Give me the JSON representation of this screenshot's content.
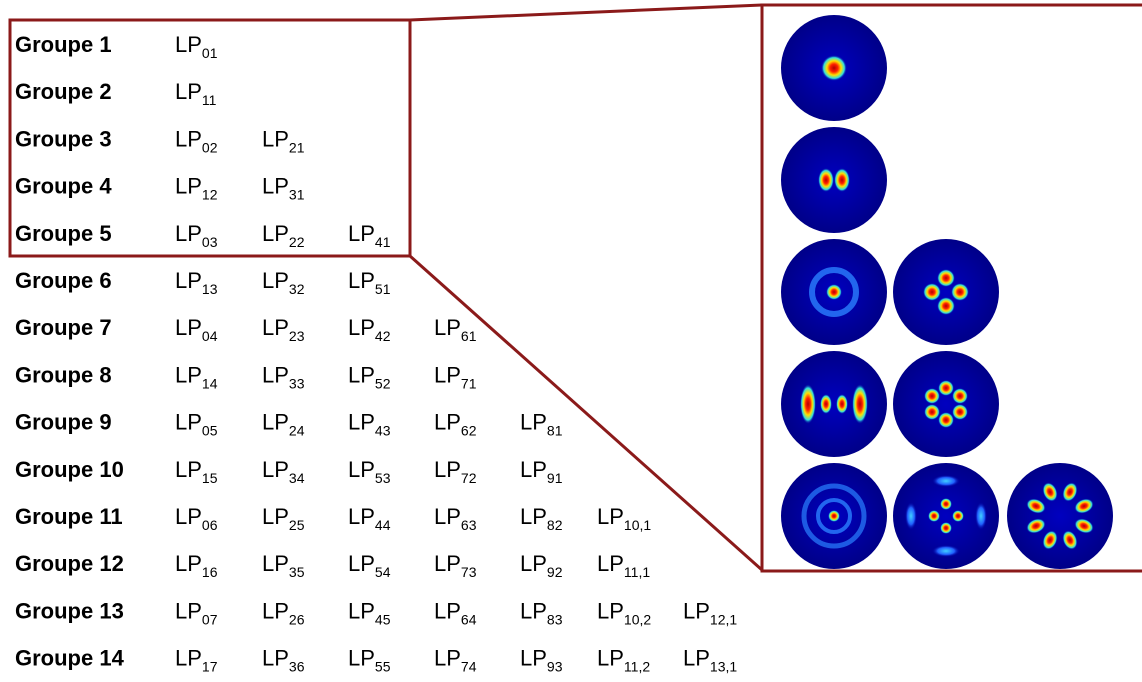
{
  "rows": [
    {
      "label": "Groupe 1",
      "modes": [
        {
          "main": "LP",
          "sub": "01"
        }
      ]
    },
    {
      "label": "Groupe 2",
      "modes": [
        {
          "main": "LP",
          "sub": "11"
        }
      ]
    },
    {
      "label": "Groupe 3",
      "modes": [
        {
          "main": "LP",
          "sub": "02"
        },
        {
          "main": "LP",
          "sub": "21"
        }
      ]
    },
    {
      "label": "Groupe 4",
      "modes": [
        {
          "main": "LP",
          "sub": "12"
        },
        {
          "main": "LP",
          "sub": "31"
        }
      ]
    },
    {
      "label": "Groupe 5",
      "modes": [
        {
          "main": "LP",
          "sub": "03"
        },
        {
          "main": "LP",
          "sub": "22"
        },
        {
          "main": "LP",
          "sub": "41"
        }
      ]
    },
    {
      "label": "Groupe 6",
      "modes": [
        {
          "main": "LP",
          "sub": "13"
        },
        {
          "main": "LP",
          "sub": "32"
        },
        {
          "main": "LP",
          "sub": "51"
        }
      ]
    },
    {
      "label": "Groupe 7",
      "modes": [
        {
          "main": "LP",
          "sub": "04"
        },
        {
          "main": "LP",
          "sub": "23"
        },
        {
          "main": "LP",
          "sub": "42"
        },
        {
          "main": "LP",
          "sub": "61"
        }
      ]
    },
    {
      "label": "Groupe 8",
      "modes": [
        {
          "main": "LP",
          "sub": "14"
        },
        {
          "main": "LP",
          "sub": "33"
        },
        {
          "main": "LP",
          "sub": "52"
        },
        {
          "main": "LP",
          "sub": "71"
        }
      ]
    },
    {
      "label": "Groupe 9",
      "modes": [
        {
          "main": "LP",
          "sub": "05"
        },
        {
          "main": "LP",
          "sub": "24"
        },
        {
          "main": "LP",
          "sub": "43"
        },
        {
          "main": "LP",
          "sub": "62"
        },
        {
          "main": "LP",
          "sub": "81"
        }
      ]
    },
    {
      "label": "Groupe 10",
      "modes": [
        {
          "main": "LP",
          "sub": "15"
        },
        {
          "main": "LP",
          "sub": "34"
        },
        {
          "main": "LP",
          "sub": "53"
        },
        {
          "main": "LP",
          "sub": "72"
        },
        {
          "main": "LP",
          "sub": "91"
        }
      ]
    },
    {
      "label": "Groupe 11",
      "modes": [
        {
          "main": "LP",
          "sub": "06"
        },
        {
          "main": "LP",
          "sub": "25"
        },
        {
          "main": "LP",
          "sub": "44"
        },
        {
          "main": "LP",
          "sub": "63"
        },
        {
          "main": "LP",
          "sub": "82"
        },
        {
          "main": "LP",
          "sub": "10,1"
        }
      ]
    },
    {
      "label": "Groupe 12",
      "modes": [
        {
          "main": "LP",
          "sub": "16"
        },
        {
          "main": "LP",
          "sub": "35"
        },
        {
          "main": "LP",
          "sub": "54"
        },
        {
          "main": "LP",
          "sub": "73"
        },
        {
          "main": "LP",
          "sub": "92"
        },
        {
          "main": "LP",
          "sub": "11,1"
        }
      ]
    },
    {
      "label": "Groupe 13",
      "modes": [
        {
          "main": "LP",
          "sub": "07"
        },
        {
          "main": "LP",
          "sub": "26"
        },
        {
          "main": "LP",
          "sub": "45"
        },
        {
          "main": "LP",
          "sub": "64"
        },
        {
          "main": "LP",
          "sub": "83"
        },
        {
          "main": "LP",
          "sub": "10,2"
        },
        {
          "main": "LP",
          "sub": "12,1"
        }
      ]
    },
    {
      "label": "Groupe 14",
      "modes": [
        {
          "main": "LP",
          "sub": "17"
        },
        {
          "main": "LP",
          "sub": "36"
        },
        {
          "main": "LP",
          "sub": "55"
        },
        {
          "main": "LP",
          "sub": "74"
        },
        {
          "main": "LP",
          "sub": "93"
        },
        {
          "main": "LP",
          "sub": "11,2"
        },
        {
          "main": "LP",
          "sub": "13,1"
        }
      ]
    }
  ]
}
